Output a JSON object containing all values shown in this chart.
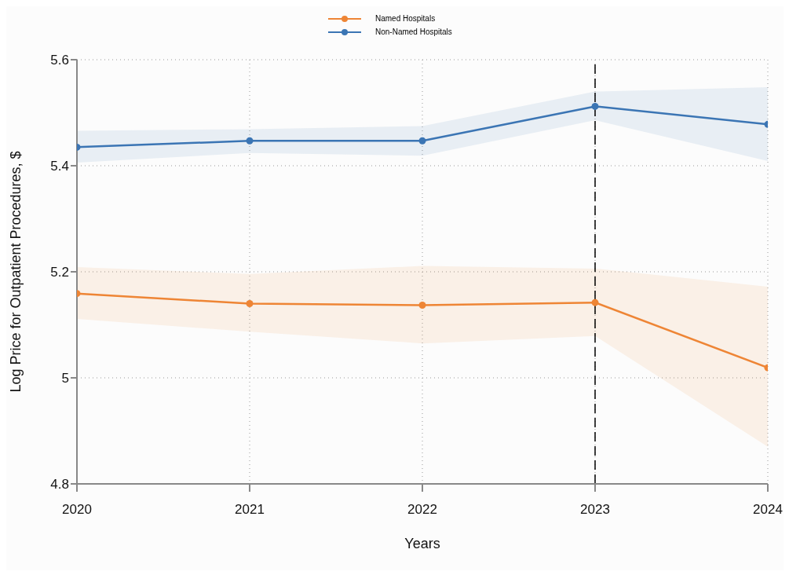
{
  "chart_data": {
    "type": "line",
    "xlabel": "Years",
    "ylabel": "Log Price for Outpatient Procedures, $",
    "x": [
      2020,
      2021,
      2022,
      2023,
      2024
    ],
    "xlim": [
      2020,
      2024
    ],
    "xticks": [
      2020,
      2021,
      2022,
      2023,
      2024
    ],
    "ylim": [
      4.8,
      5.6
    ],
    "yticks": [
      4.8,
      5,
      5.2,
      5.4,
      5.6
    ],
    "grid": true,
    "legend": "top",
    "marker": "circle",
    "line_style": "solid",
    "series": [
      {
        "name": "Named Hospitals",
        "color": "#ee8535",
        "values": [
          5.159,
          5.14,
          5.137,
          5.142,
          5.019
        ],
        "lower": [
          5.111,
          5.087,
          5.065,
          5.079,
          4.87
        ],
        "upper": [
          5.209,
          5.196,
          5.211,
          5.206,
          5.172
        ]
      },
      {
        "name": "Non-Named Hospitals",
        "color": "#3b75b4",
        "values": [
          5.435,
          5.447,
          5.447,
          5.512,
          5.478
        ],
        "lower": [
          5.406,
          5.424,
          5.419,
          5.486,
          5.409
        ],
        "upper": [
          5.466,
          5.469,
          5.475,
          5.54,
          5.548
        ]
      }
    ],
    "ref_lines": [
      {
        "axis": "x",
        "value": 2023,
        "color": "#000000",
        "line_style": "dashed"
      }
    ]
  }
}
